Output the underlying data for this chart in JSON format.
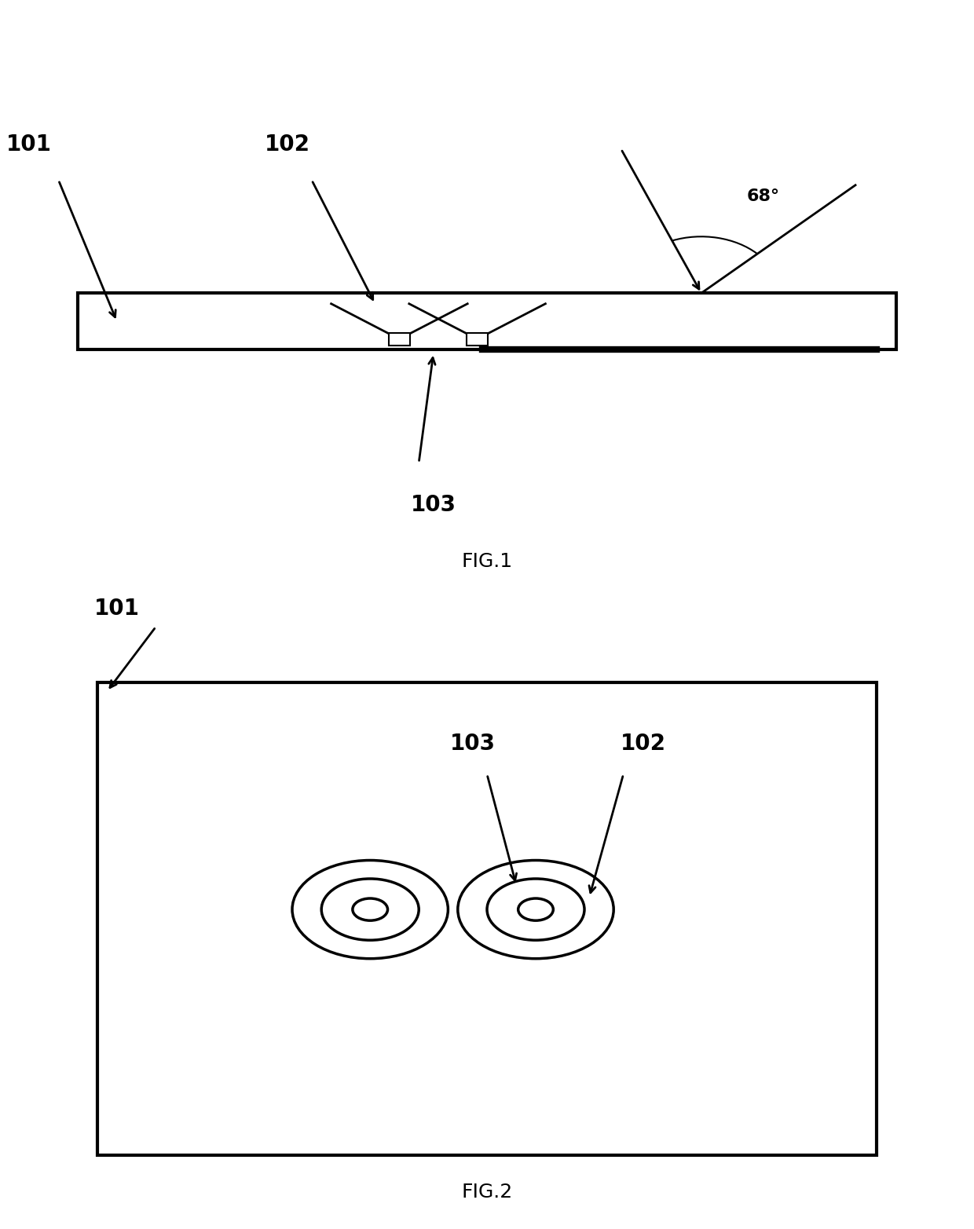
{
  "bg_color": "#ffffff",
  "fig_width": 12.4,
  "fig_height": 15.65,
  "fig1_label": "FIG.1",
  "fig2_label": "FIG.2",
  "label_101": "101",
  "label_102": "102",
  "label_103": "103",
  "angle_label": "68°",
  "plate_color": "#ffffff",
  "plate_edge_color": "#000000",
  "plate_linewidth": 3,
  "lw_well": 2,
  "ring_color": "#000000",
  "fontsize_label": 20,
  "fontsize_fig": 18
}
